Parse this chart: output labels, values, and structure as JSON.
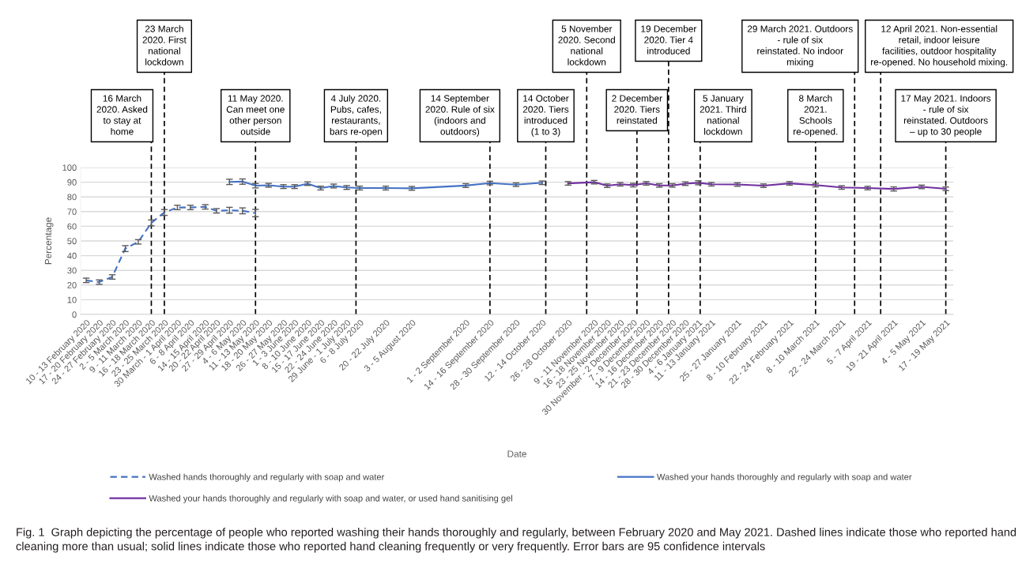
{
  "chart_data": {
    "type": "line",
    "xlabel": "Date",
    "ylabel": "Percentage",
    "xlim": [
      "2020-02-07",
      "2021-05-21"
    ],
    "ylim": [
      0,
      100
    ],
    "yticks": [
      0,
      10,
      20,
      30,
      40,
      50,
      60,
      70,
      80,
      90,
      100
    ],
    "xticks": [
      {
        "value": "2020-02-10",
        "label": "10 - 13 February 2020"
      },
      {
        "value": "2020-02-17",
        "label": "17 - 20 February 2020"
      },
      {
        "value": "2020-02-24",
        "label": "24 - 27 February 2020"
      },
      {
        "value": "2020-03-02",
        "label": "2 - 5 March 2020"
      },
      {
        "value": "2020-03-09",
        "label": "9 - 11 March 2020"
      },
      {
        "value": "2020-03-16",
        "label": "16 - 18 March 2020"
      },
      {
        "value": "2020-03-23",
        "label": "23 - 25 March 2020"
      },
      {
        "value": "2020-03-30",
        "label": "30 March - 1 April 2020"
      },
      {
        "value": "2020-04-06",
        "label": "6 - 8 April 2020"
      },
      {
        "value": "2020-04-14",
        "label": "14 - 15 April 2020"
      },
      {
        "value": "2020-04-20",
        "label": "20 - 22 April 2020"
      },
      {
        "value": "2020-04-27",
        "label": "27 - 29 April 2020"
      },
      {
        "value": "2020-05-04",
        "label": "4 - 6 May 2020"
      },
      {
        "value": "2020-05-11",
        "label": "11 - 13 May 2020"
      },
      {
        "value": "2020-05-18",
        "label": "18 - 20 May 2020"
      },
      {
        "value": "2020-05-26",
        "label": "26 - 27 May 2020"
      },
      {
        "value": "2020-06-01",
        "label": "1 - 3 June 2020"
      },
      {
        "value": "2020-06-08",
        "label": "8 - 10 June 2020"
      },
      {
        "value": "2020-06-15",
        "label": "15 - 17 June 2020"
      },
      {
        "value": "2020-06-22",
        "label": "22 - 24 June 2020"
      },
      {
        "value": "2020-06-29",
        "label": "29 June - 1 July 2020"
      },
      {
        "value": "2020-07-06",
        "label": "6 - 8 July 2020"
      },
      {
        "value": "2020-07-20",
        "label": "20 - 22 July 2020"
      },
      {
        "value": "2020-08-03",
        "label": "3 - 5 August 2020"
      },
      {
        "value": "2020-09-01",
        "label": "1 - 2 September 2020"
      },
      {
        "value": "2020-09-14",
        "label": "14 - 16 September 2020"
      },
      {
        "value": "2020-09-28",
        "label": "28 - 30 September 2020"
      },
      {
        "value": "2020-10-12",
        "label": "12 - 14 October 2020"
      },
      {
        "value": "2020-10-26",
        "label": "26 - 28 October 2020"
      },
      {
        "value": "2020-11-09",
        "label": "9 - 11 November 2020"
      },
      {
        "value": "2020-11-16",
        "label": "16 - 18 November 2020"
      },
      {
        "value": "2020-11-23",
        "label": "23 - 25 November 2020"
      },
      {
        "value": "2020-11-30",
        "label": "30 November - 2 December 2020"
      },
      {
        "value": "2020-12-07",
        "label": "7 - 9 December 2020"
      },
      {
        "value": "2020-12-14",
        "label": "14 - 16 December 2020"
      },
      {
        "value": "2020-12-21",
        "label": "21 - 23 December 2020"
      },
      {
        "value": "2020-12-28",
        "label": "28 - 30 December 2020"
      },
      {
        "value": "2021-01-04",
        "label": "4 - 6 January 2021"
      },
      {
        "value": "2021-01-11",
        "label": "11 - 13 January 2021"
      },
      {
        "value": "2021-01-25",
        "label": "25 - 27 January 2021"
      },
      {
        "value": "2021-02-08",
        "label": "8 - 10 February 2021"
      },
      {
        "value": "2021-02-22",
        "label": "22 - 24 February 2021"
      },
      {
        "value": "2021-03-08",
        "label": "8 - 10 March 2021"
      },
      {
        "value": "2021-03-22",
        "label": "22 - 24 March 2021"
      },
      {
        "value": "2021-04-05",
        "label": "5 - 7 April 2021"
      },
      {
        "value": "2021-04-19",
        "label": "19 - 21 April 2021"
      },
      {
        "value": "2021-05-04",
        "label": "4 - 5 May 2021"
      },
      {
        "value": "2021-05-17",
        "label": "17 - 19 May 2021"
      }
    ],
    "series": [
      {
        "name": "Washed hands thoroughly and regularly with soap and water",
        "color": "#4472c4",
        "line_style": "dashed",
        "x": [
          "2020-02-10",
          "2020-02-17",
          "2020-02-24",
          "2020-03-02",
          "2020-03-09",
          "2020-03-16",
          "2020-03-23",
          "2020-03-30",
          "2020-04-06",
          "2020-04-14",
          "2020-04-20",
          "2020-04-27",
          "2020-05-04",
          "2020-05-11"
        ],
        "values": [
          23.2,
          22.0,
          25.5,
          44.8,
          49.4,
          62.3,
          69.4,
          72.8,
          72.8,
          73.2,
          70.5,
          70.9,
          70.5,
          69.0
        ],
        "errors": [
          1.5,
          1.5,
          1.5,
          2,
          1.5,
          2,
          2,
          1.5,
          1.5,
          1.5,
          1.5,
          2,
          2,
          2.5
        ]
      },
      {
        "name": "Washed your hands thoroughly and regularly with soap and water",
        "color": "#4472c4",
        "line_style": "solid",
        "x": [
          "2020-04-27",
          "2020-05-04",
          "2020-05-11",
          "2020-05-18",
          "2020-05-26",
          "2020-06-01",
          "2020-06-08",
          "2020-06-15",
          "2020-06-22",
          "2020-06-29",
          "2020-07-06",
          "2020-07-20",
          "2020-08-03",
          "2020-09-01",
          "2020-09-14",
          "2020-09-28",
          "2020-10-12"
        ],
        "values": [
          90.2,
          90.4,
          87.6,
          87.9,
          87.0,
          87.0,
          89.0,
          86.0,
          87.4,
          86.4,
          86.0,
          86.0,
          85.8,
          87.7,
          89.4,
          88.3,
          89.6
        ],
        "errors": [
          1.8,
          1.8,
          1.5,
          1.3,
          1.3,
          1.3,
          1.2,
          1.3,
          1.3,
          1.3,
          1.3,
          1.3,
          1.3,
          1.3,
          1.2,
          1.2,
          1.2
        ]
      },
      {
        "name": "Washed your hands thoroughly and regularly with soap and water, or used hand sanitising gel",
        "color": "#7030a0",
        "line_style": "solid",
        "x": [
          "2020-10-26",
          "2020-11-09",
          "2020-11-16",
          "2020-11-23",
          "2020-11-30",
          "2020-12-07",
          "2020-12-14",
          "2020-12-21",
          "2020-12-28",
          "2021-01-04",
          "2021-01-11",
          "2021-01-25",
          "2021-02-08",
          "2021-02-22",
          "2021-03-08",
          "2021-03-22",
          "2021-04-05",
          "2021-04-19",
          "2021-05-04",
          "2021-05-17"
        ],
        "values": [
          89.2,
          90.0,
          87.6,
          88.6,
          88.0,
          89.2,
          87.8,
          87.8,
          89.0,
          89.6,
          88.6,
          88.4,
          87.6,
          89.2,
          88.0,
          86.4,
          86.0,
          85.4,
          86.8,
          85.5
        ],
        "errors": [
          1.2,
          1.2,
          1.2,
          1.2,
          1.2,
          1.2,
          1.2,
          1.2,
          1.2,
          1.4,
          1.2,
          1.2,
          1.2,
          1.2,
          1.2,
          1.2,
          1.2,
          1.4,
          1.2,
          1.2
        ]
      }
    ],
    "ref_lines": [
      {
        "axis": "x",
        "value": "2020-03-16",
        "label": "16 March 2020. Asked to stay at home",
        "color": "#000000",
        "line_style": "dashed"
      },
      {
        "axis": "x",
        "value": "2020-03-23",
        "label": "23 March 2020. First national lockdown",
        "color": "#000000",
        "line_style": "dashed"
      },
      {
        "axis": "x",
        "value": "2020-05-11",
        "label": "11 May 2020. Can meet one other person outside",
        "color": "#000000",
        "line_style": "dashed"
      },
      {
        "axis": "x",
        "value": "2020-07-04",
        "label": "4 July 2020. Pubs, cafes, restaurants, bars re-open",
        "color": "#000000",
        "line_style": "dashed"
      },
      {
        "axis": "x",
        "value": "2020-09-14",
        "label": "14 September 2020. Rule of six (indoors and outdoors)",
        "color": "#000000",
        "line_style": "dashed"
      },
      {
        "axis": "x",
        "value": "2020-10-14",
        "label": "14 October 2020. Tiers introduced (1 to 3)",
        "color": "#000000",
        "line_style": "dashed"
      },
      {
        "axis": "x",
        "value": "2020-11-05",
        "label": "5 November 2020. Second national lockdown",
        "color": "#000000",
        "line_style": "dashed"
      },
      {
        "axis": "x",
        "value": "2020-12-02",
        "label": "2 December 2020. Tiers reinstated",
        "color": "#000000",
        "line_style": "dashed"
      },
      {
        "axis": "x",
        "value": "2020-12-19",
        "label": "19 December 2020. Tier 4 introduced",
        "color": "#000000",
        "line_style": "dashed"
      },
      {
        "axis": "x",
        "value": "2021-01-05",
        "label": "5 January 2021. Third national lockdown",
        "color": "#000000",
        "line_style": "dashed"
      },
      {
        "axis": "x",
        "value": "2021-03-08",
        "label": "8 March 2021. Schools re-opened.",
        "color": "#000000",
        "line_style": "dashed"
      },
      {
        "axis": "x",
        "value": "2021-03-29",
        "label": "29 March 2021. Outdoors - rule of six reinstated. No indoor mixing",
        "color": "#000000",
        "line_style": "dashed"
      },
      {
        "axis": "x",
        "value": "2021-04-12",
        "label": "12 April 2021. Non-essential retail, indoor leisure facilities, outdoor hospitality re-opened. No household mixing.",
        "color": "#000000",
        "line_style": "dashed"
      },
      {
        "axis": "x",
        "value": "2021-05-17",
        "label": "17 May 2021. Indoors - rule of six reinstated. Outdoors – up to 30 people",
        "color": "#000000",
        "line_style": "dashed"
      }
    ],
    "annotations": [
      "Fig. 1  Graph depicting the percentage of people who reported washing their hands thoroughly and regularly, between February 2020 and May 2021. Dashed lines indicate those who reported hand cleaning more than usual; solid lines indicate those who reported hand cleaning frequently or very frequently. Error bars are 95 confidence intervals"
    ],
    "grid": "y",
    "legend": "bottom",
    "marker": "none"
  }
}
